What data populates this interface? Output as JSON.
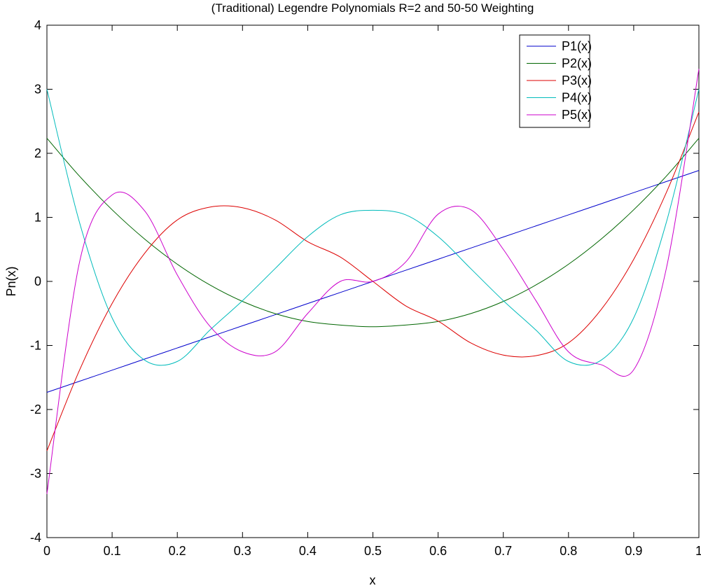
{
  "chart_data": {
    "type": "line",
    "title": "(Traditional) Legendre Polynomials  R=2 and 50-50 Weighting",
    "xlabel": "x",
    "ylabel": "Pn(x)",
    "xlim": [
      0,
      1
    ],
    "ylim": [
      -4,
      4
    ],
    "x_ticks": [
      "0",
      "0.1",
      "0.2",
      "0.3",
      "0.4",
      "0.5",
      "0.6",
      "0.7",
      "0.8",
      "0.9",
      "1"
    ],
    "y_ticks": [
      "-4",
      "-3",
      "-2",
      "-1",
      "0",
      "1",
      "2",
      "3",
      "4"
    ],
    "grid": false,
    "legend_position": "top-right",
    "x": [
      0,
      0.05,
      0.1,
      0.15,
      0.2,
      0.25,
      0.3,
      0.35,
      0.4,
      0.45,
      0.5,
      0.55,
      0.6,
      0.65,
      0.7,
      0.75,
      0.8,
      0.85,
      0.9,
      0.95,
      1
    ],
    "series": [
      {
        "name": "P1(x)",
        "color": "#0000cc",
        "values": [
          -1.732,
          -1.559,
          -1.386,
          -1.212,
          -1.039,
          -0.866,
          -0.693,
          -0.52,
          -0.346,
          -0.173,
          0.0,
          0.173,
          0.346,
          0.52,
          0.693,
          0.866,
          1.039,
          1.212,
          1.386,
          1.559,
          1.732
        ]
      },
      {
        "name": "P2(x)",
        "color": "#006600",
        "values": [
          2.236,
          1.643,
          1.118,
          0.66,
          0.268,
          -0.056,
          -0.313,
          -0.503,
          -0.626,
          -0.682,
          -0.708,
          -0.682,
          -0.626,
          -0.503,
          -0.313,
          -0.056,
          0.268,
          0.66,
          1.118,
          1.643,
          2.236
        ]
      },
      {
        "name": "P3(x)",
        "color": "#dd0000",
        "values": [
          -2.646,
          -1.386,
          -0.344,
          0.441,
          0.96,
          1.16,
          1.15,
          0.96,
          0.62,
          0.38,
          0.0,
          -0.38,
          -0.62,
          -0.96,
          -1.15,
          -1.16,
          -0.96,
          -0.441,
          0.344,
          1.386,
          2.646
        ]
      },
      {
        "name": "P4(x)",
        "color": "#00bbbb",
        "values": [
          3.0,
          0.92,
          -0.57,
          -1.23,
          -1.25,
          -0.76,
          -0.3,
          0.2,
          0.7,
          1.04,
          1.11,
          1.04,
          0.7,
          0.2,
          -0.3,
          -0.76,
          -1.25,
          -1.23,
          -0.57,
          0.92,
          3.0
        ]
      },
      {
        "name": "P5(x)",
        "color": "#cc00cc",
        "values": [
          -3.317,
          0.3,
          1.35,
          1.1,
          0.1,
          -0.7,
          -1.1,
          -1.1,
          -0.5,
          0.0,
          0.0,
          0.3,
          1.05,
          1.12,
          0.5,
          -0.3,
          -1.1,
          -1.3,
          -1.38,
          0.2,
          3.317
        ]
      }
    ]
  }
}
